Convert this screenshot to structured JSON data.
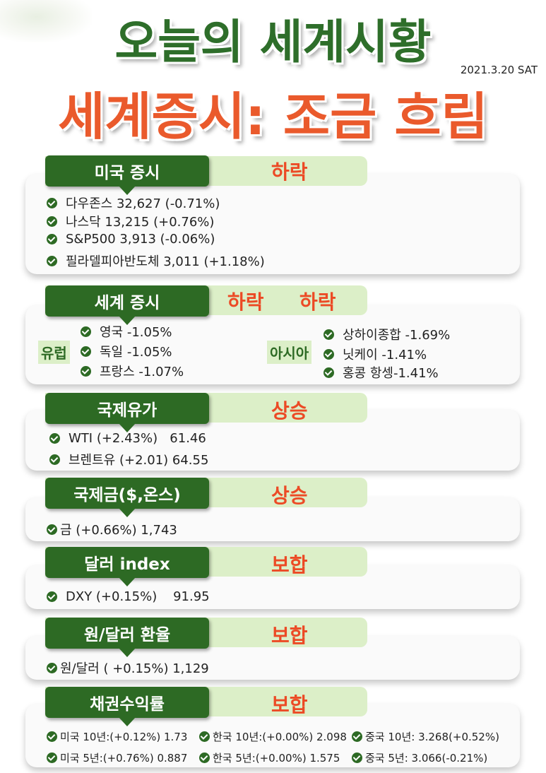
{
  "header": {
    "title": "오늘의 세계시황",
    "subtitle": "세계증시: 조금 흐림",
    "date": "2021.3.20 SAT"
  },
  "us_stocks": {
    "tag": "미국 증시",
    "status": "하락",
    "items": [
      "다우존스 32,627 (-0.71%)",
      "나스닥 13,215 (+0.76%)",
      "S&P500 3,913 (-0.06%)",
      "필라델피아반도체 3,011 (+1.18%)"
    ]
  },
  "world_stocks": {
    "tag": "세계 증시",
    "status_europe": "하락",
    "status_asia": "하락",
    "europe_label": "유럽",
    "asia_label": "아시아",
    "europe": [
      "영국 -1.05%",
      "독일 -1.05%",
      "프랑스 -1.07%"
    ],
    "asia": [
      "상하이종합 -1.69%",
      "닛케이 -1.41%",
      "홍콩 항셍-1.41%"
    ]
  },
  "oil": {
    "tag": "국제유가",
    "status": "상승",
    "items": [
      "WTI (+2.43%)   61.46",
      "브렌트유 (+2.01) 64.55"
    ]
  },
  "gold": {
    "tag": "국제금($,온스)",
    "status": "상승",
    "items": [
      "금 (+0.66%) 1,743"
    ]
  },
  "dollar_index": {
    "tag": "달러 index",
    "status": "보합",
    "items": [
      "DXY (+0.15%)    91.95"
    ]
  },
  "krw_usd": {
    "tag": "원/달러 환율",
    "status": "보합",
    "items": [
      "원/달러 ( +0.15%) 1,129"
    ]
  },
  "bonds": {
    "tag": "채권수익률",
    "status": "보합",
    "items": [
      "미국 10년:(+0.12%) 1.73",
      "한국 10년:(+0.00%) 2.098",
      "중국 10년: 3.268(+0.52%)",
      "미국 5년:(+0.76%) 0.887",
      "한국 5년:(+0.00%) 1.575",
      "중국 5년: 3.066(-0.21%)"
    ]
  },
  "colors": {
    "tag_green": "#2d6a24",
    "band_green": "#dcefc8",
    "status_red": "#ec4a25",
    "title_green": "#2e6e2a",
    "subtitle_orange": "#ea5a2c"
  }
}
